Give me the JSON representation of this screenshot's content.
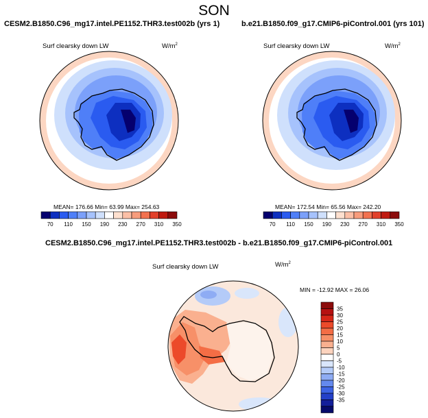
{
  "season": "SON",
  "panels": [
    {
      "title": "CESM2.B1850.C96_mg17.intel.PE1152.THR3.test002b (yrs 1)",
      "variable": "Surf clearsky down LW",
      "units_base": "W/m",
      "units_exp": "2",
      "stats": "MEAN= 176.66  Min= 63.99  Max= 254.63"
    },
    {
      "title": "b.e21.B1850.f09_g17.CMIP6-piControl.001 (yrs 101)",
      "variable": "Surf clearsky down LW",
      "units_base": "W/m",
      "units_exp": "2",
      "stats": "MEAN= 172.54  Min= 65.56  Max= 242.20"
    },
    {
      "title": "CESM2.B1850.C96_mg17.intel.PE1152.THR3.test002b - b.e21.B1850.f09_g17.CMIP6-piControl.001",
      "variable": "Surf clearsky down LW",
      "units_base": "W/m",
      "units_exp": "2",
      "stats": "MIN = -12.92 MAX =  26.06"
    }
  ],
  "chart_data": [
    {
      "type": "heatmap",
      "title": "CESM2.B1850.C96_mg17.intel.PE1152.THR3.test002b (yrs 1)",
      "variable": "Surf clearsky down LW",
      "units": "W/m2",
      "projection": "south polar stereographic",
      "mean": 176.66,
      "min": 63.99,
      "max": 254.63,
      "levels": [
        70,
        110,
        150,
        190,
        230,
        270,
        310,
        350
      ],
      "colorbar_colors": [
        "#05006e",
        "#0d2fc0",
        "#2a5bf0",
        "#4f7ff8",
        "#7ba0fa",
        "#a6c2fc",
        "#cfe0fc",
        "#ffffff",
        "#fde0cf",
        "#fbbfa6",
        "#f79c7c",
        "#f2714f",
        "#e2402a",
        "#c01a10",
        "#8c0c0c"
      ]
    },
    {
      "type": "heatmap",
      "title": "b.e21.B1850.f09_g17.CMIP6-piControl.001 (yrs 101)",
      "variable": "Surf clearsky down LW",
      "units": "W/m2",
      "projection": "south polar stereographic",
      "mean": 172.54,
      "min": 65.56,
      "max": 242.2,
      "levels": [
        70,
        110,
        150,
        190,
        230,
        270,
        310,
        350
      ],
      "colorbar_colors": [
        "#05006e",
        "#0d2fc0",
        "#2a5bf0",
        "#4f7ff8",
        "#7ba0fa",
        "#a6c2fc",
        "#cfe0fc",
        "#ffffff",
        "#fde0cf",
        "#fbbfa6",
        "#f79c7c",
        "#f2714f",
        "#e2402a",
        "#c01a10",
        "#8c0c0c"
      ]
    },
    {
      "type": "heatmap",
      "title": "CESM2.B1850.C96_mg17.intel.PE1152.THR3.test002b - b.e21.B1850.f09_g17.CMIP6-piControl.001",
      "variable": "Surf clearsky down LW",
      "units": "W/m2",
      "projection": "south polar stereographic",
      "min": -12.92,
      "max": 26.06,
      "levels": [
        35,
        30,
        25,
        20,
        15,
        10,
        5,
        0,
        -5,
        -10,
        -15,
        -20,
        -25,
        -30,
        -35
      ],
      "colorbar_colors": [
        "#8c0c0c",
        "#b51111",
        "#d62618",
        "#ec4a2a",
        "#f46d45",
        "#f79068",
        "#fab08f",
        "#fcd3be",
        "#ffffff",
        "#d9e6fb",
        "#b4cbf8",
        "#8eacf4",
        "#6489ee",
        "#3d63e4",
        "#2440c8",
        "#131f9a",
        "#060b6a"
      ]
    }
  ]
}
